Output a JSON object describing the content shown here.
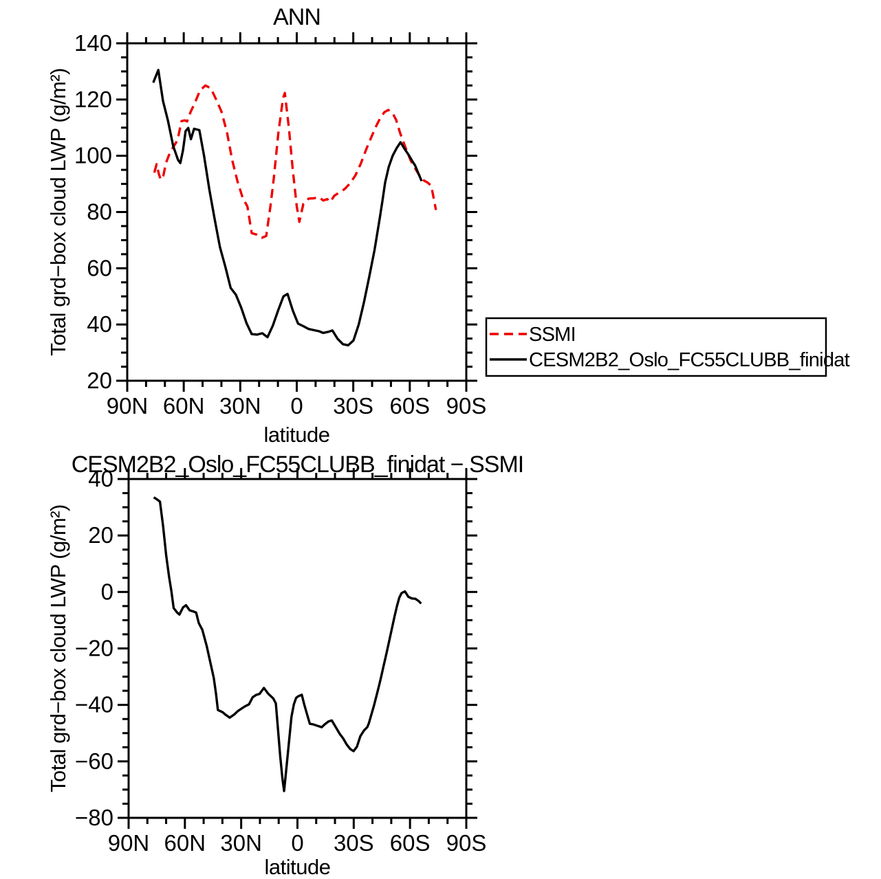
{
  "figure": {
    "background": "#ffffff"
  },
  "chart_data": [
    {
      "id": "top",
      "type": "line",
      "title": "ANN",
      "xlabel": "latitude",
      "ylabel": "Total grd−box cloud LWP (g/m²)",
      "xlim": [
        90,
        -90
      ],
      "ylim": [
        20,
        140
      ],
      "grid": false,
      "xticks": {
        "values": [
          90,
          60,
          30,
          0,
          -30,
          -60,
          -90
        ],
        "labels": [
          "90N",
          "60N",
          "30N",
          "0",
          "30S",
          "60S",
          "90S"
        ],
        "minor_step": 10
      },
      "yticks": {
        "values": [
          140,
          120,
          100,
          80,
          60,
          40,
          20
        ],
        "labels": [
          "140",
          "120",
          "100",
          "80",
          "60",
          "40",
          "20"
        ],
        "minor_step": 5
      },
      "legend": {
        "position": "outside-right",
        "entries": [
          "SSMI",
          "CESM2B2_Oslo_FC55CLUBB_finidat"
        ]
      },
      "series": [
        {
          "name": "SSMI",
          "color": "#ee0000",
          "style": "dashed",
          "points": [
            [
              75.6,
              94.0
            ],
            [
              74.4,
              97.0
            ],
            [
              73.2,
              93.5
            ],
            [
              72.2,
              91.5
            ],
            [
              70.8,
              93.0
            ],
            [
              69.4,
              97.5
            ],
            [
              67.4,
              101.0
            ],
            [
              65.4,
              103.3
            ],
            [
              63.3,
              105.5
            ],
            [
              61.2,
              112.3
            ],
            [
              59.6,
              112.6
            ],
            [
              58.2,
              112.2
            ],
            [
              56.4,
              115.5
            ],
            [
              54.1,
              118.8
            ],
            [
              51.3,
              123.3
            ],
            [
              48.5,
              125.0
            ],
            [
              45.6,
              124.0
            ],
            [
              42.8,
              120.0
            ],
            [
              40.0,
              115.8
            ],
            [
              37.1,
              108.5
            ],
            [
              34.3,
              98.5
            ],
            [
              31.5,
              91.0
            ],
            [
              28.7,
              85.0
            ],
            [
              26.2,
              82.0
            ],
            [
              23.9,
              72.5
            ],
            [
              21.4,
              72.0
            ],
            [
              18.6,
              70.8
            ],
            [
              16.2,
              71.5
            ],
            [
              14.0,
              82.0
            ],
            [
              12.2,
              92.0
            ],
            [
              9.8,
              108.0
            ],
            [
              7.3,
              120.5
            ],
            [
              6.3,
              122.3
            ],
            [
              4.2,
              110.0
            ],
            [
              2.1,
              95.0
            ],
            [
              0.0,
              82.0
            ],
            [
              -1.4,
              76.5
            ],
            [
              -3.5,
              82.9
            ],
            [
              -6.3,
              84.8
            ],
            [
              -9.1,
              84.9
            ],
            [
              -11.9,
              85.3
            ],
            [
              -14.0,
              84.1
            ],
            [
              -16.2,
              84.6
            ],
            [
              -17.8,
              83.6
            ],
            [
              -19.9,
              85.8
            ],
            [
              -22.7,
              87.0
            ],
            [
              -25.5,
              88.2
            ],
            [
              -28.3,
              90.2
            ],
            [
              -31.1,
              93.0
            ],
            [
              -33.9,
              97.0
            ],
            [
              -36.7,
              102.0
            ],
            [
              -39.5,
              106.5
            ],
            [
              -42.3,
              110.8
            ],
            [
              -44.4,
              113.5
            ],
            [
              -46.5,
              115.5
            ],
            [
              -48.6,
              116.3
            ],
            [
              -50.7,
              115.4
            ],
            [
              -52.8,
              112.7
            ],
            [
              -54.9,
              108.0
            ],
            [
              -57.7,
              103.0
            ],
            [
              -60.5,
              98.3
            ],
            [
              -63.3,
              95.0
            ],
            [
              -65.4,
              92.7
            ],
            [
              -67.5,
              91.2
            ],
            [
              -69.6,
              90.4
            ],
            [
              -71.4,
              89.3
            ],
            [
              -73.9,
              80.7
            ]
          ]
        },
        {
          "name": "CESM2B2_Oslo_FC55CLUBB_finidat",
          "color": "#000000",
          "style": "solid",
          "points": [
            [
              76.2,
              126.0
            ],
            [
              73.5,
              130.5
            ],
            [
              71.0,
              119.5
            ],
            [
              68.4,
              112.5
            ],
            [
              65.6,
              103.5
            ],
            [
              63.0,
              98.5
            ],
            [
              61.8,
              97.4
            ],
            [
              60.4,
              102.0
            ],
            [
              59.0,
              108.8
            ],
            [
              57.6,
              109.9
            ],
            [
              56.2,
              105.9
            ],
            [
              54.5,
              109.6
            ],
            [
              51.7,
              109.1
            ],
            [
              49.2,
              100.0
            ],
            [
              46.4,
              88.0
            ],
            [
              43.6,
              77.5
            ],
            [
              40.8,
              67.5
            ],
            [
              37.9,
              60.5
            ],
            [
              35.1,
              53.0
            ],
            [
              32.3,
              50.6
            ],
            [
              29.5,
              46.0
            ],
            [
              26.7,
              40.5
            ],
            [
              23.9,
              36.6
            ],
            [
              21.1,
              36.4
            ],
            [
              18.3,
              36.9
            ],
            [
              15.5,
              35.5
            ],
            [
              12.7,
              39.6
            ],
            [
              9.9,
              45.0
            ],
            [
              7.1,
              50.0
            ],
            [
              4.9,
              50.9
            ],
            [
              2.1,
              45.0
            ],
            [
              -0.7,
              40.3
            ],
            [
              -3.5,
              39.4
            ],
            [
              -6.3,
              38.4
            ],
            [
              -9.1,
              38.0
            ],
            [
              -11.9,
              37.6
            ],
            [
              -14.0,
              37.0
            ],
            [
              -16.8,
              37.4
            ],
            [
              -18.9,
              37.9
            ],
            [
              -21.7,
              34.9
            ],
            [
              -24.5,
              33.0
            ],
            [
              -27.3,
              32.6
            ],
            [
              -30.1,
              34.3
            ],
            [
              -32.9,
              40.0
            ],
            [
              -35.7,
              48.0
            ],
            [
              -38.5,
              57.0
            ],
            [
              -41.3,
              66.5
            ],
            [
              -44.1,
              78.0
            ],
            [
              -45.5,
              84.0
            ],
            [
              -46.9,
              90.5
            ],
            [
              -48.8,
              96.0
            ],
            [
              -50.9,
              100.0
            ],
            [
              -53.0,
              102.7
            ],
            [
              -55.1,
              104.8
            ],
            [
              -57.4,
              102.3
            ],
            [
              -59.5,
              100.2
            ],
            [
              -61.4,
              98.0
            ],
            [
              -62.8,
              96.6
            ],
            [
              -64.5,
              93.8
            ],
            [
              -66.3,
              91.0
            ]
          ]
        }
      ]
    },
    {
      "id": "bottom",
      "type": "line",
      "title": "CESM2B2_Oslo_FC55CLUBB_finidat − SSMI",
      "xlabel": "latitude",
      "ylabel": "Total grd−box cloud LWP (g/m²)",
      "xlim": [
        90,
        -90
      ],
      "ylim": [
        -80,
        40
      ],
      "grid": false,
      "xticks": {
        "values": [
          90,
          60,
          30,
          0,
          -30,
          -60,
          -90
        ],
        "labels": [
          "90N",
          "60N",
          "30N",
          "0",
          "30S",
          "60S",
          "90S"
        ],
        "minor_step": 10
      },
      "yticks": {
        "values": [
          40,
          20,
          0,
          -20,
          -40,
          -60,
          -80
        ],
        "labels": [
          "40",
          "20",
          "0",
          "−20",
          "−40",
          "−60",
          "−80"
        ],
        "minor_step": 5
      },
      "series": [
        {
          "name": "CESM2B2_Oslo_FC55CLUBB_finidat minus SSMI",
          "color": "#000000",
          "style": "solid",
          "points": [
            [
              76.6,
              33.5
            ],
            [
              74.9,
              32.8
            ],
            [
              73.3,
              32.0
            ],
            [
              71.6,
              23.2
            ],
            [
              70.0,
              13.0
            ],
            [
              68.4,
              5.3
            ],
            [
              67.2,
              0.3
            ],
            [
              66.0,
              -5.7
            ],
            [
              64.1,
              -7.3
            ],
            [
              62.9,
              -8.0
            ],
            [
              61.0,
              -5.5
            ],
            [
              59.4,
              -4.7
            ],
            [
              57.5,
              -6.5
            ],
            [
              55.5,
              -6.9
            ],
            [
              54.0,
              -7.3
            ],
            [
              52.6,
              -11.0
            ],
            [
              50.7,
              -13.4
            ],
            [
              48.4,
              -19.1
            ],
            [
              46.5,
              -24.8
            ],
            [
              44.6,
              -30.4
            ],
            [
              43.4,
              -36.1
            ],
            [
              42.4,
              -41.8
            ],
            [
              39.9,
              -42.6
            ],
            [
              38.5,
              -43.4
            ],
            [
              36.1,
              -44.5
            ],
            [
              33.7,
              -43.4
            ],
            [
              31.8,
              -42.2
            ],
            [
              30.0,
              -41.4
            ],
            [
              28.2,
              -40.6
            ],
            [
              25.8,
              -39.8
            ],
            [
              23.9,
              -37.3
            ],
            [
              22.1,
              -36.5
            ],
            [
              20.2,
              -36.1
            ],
            [
              17.9,
              -34.0
            ],
            [
              15.5,
              -36.1
            ],
            [
              12.9,
              -37.7
            ],
            [
              11.5,
              -39.5
            ],
            [
              10.4,
              -48.3
            ],
            [
              9.2,
              -58.1
            ],
            [
              8.0,
              -66.2
            ],
            [
              7.1,
              -70.5
            ],
            [
              5.6,
              -60.5
            ],
            [
              4.4,
              -52.4
            ],
            [
              3.2,
              -44.2
            ],
            [
              1.9,
              -39.8
            ],
            [
              0.7,
              -37.5
            ],
            [
              -0.6,
              -36.9
            ],
            [
              -2.3,
              -36.4
            ],
            [
              -3.6,
              -39.8
            ],
            [
              -4.8,
              -42.6
            ],
            [
              -6.6,
              -46.7
            ],
            [
              -8.4,
              -46.9
            ],
            [
              -10.2,
              -47.3
            ],
            [
              -12.0,
              -47.7
            ],
            [
              -12.9,
              -47.9
            ],
            [
              -14.7,
              -46.8
            ],
            [
              -16.5,
              -45.9
            ],
            [
              -18.3,
              -45.5
            ],
            [
              -20.1,
              -47.5
            ],
            [
              -22.6,
              -50.3
            ],
            [
              -24.4,
              -51.9
            ],
            [
              -26.2,
              -54.0
            ],
            [
              -28.1,
              -55.6
            ],
            [
              -29.9,
              -56.4
            ],
            [
              -31.7,
              -54.8
            ],
            [
              -33.5,
              -51.1
            ],
            [
              -35.4,
              -49.1
            ],
            [
              -37.2,
              -47.9
            ],
            [
              -38.0,
              -46.6
            ],
            [
              -39.6,
              -43.0
            ],
            [
              -40.8,
              -40.2
            ],
            [
              -42.1,
              -36.9
            ],
            [
              -43.3,
              -33.7
            ],
            [
              -44.5,
              -30.4
            ],
            [
              -45.7,
              -26.8
            ],
            [
              -47.0,
              -23.1
            ],
            [
              -48.2,
              -19.5
            ],
            [
              -49.4,
              -15.8
            ],
            [
              -50.6,
              -12.2
            ],
            [
              -51.8,
              -8.5
            ],
            [
              -53.1,
              -4.9
            ],
            [
              -54.3,
              -2.0
            ],
            [
              -55.5,
              -0.4
            ],
            [
              -57.3,
              0.2
            ],
            [
              -59.1,
              -1.7
            ],
            [
              -61.0,
              -2.3
            ],
            [
              -62.8,
              -2.4
            ],
            [
              -64.6,
              -3.2
            ],
            [
              -65.9,
              -4.1
            ]
          ]
        }
      ]
    }
  ]
}
